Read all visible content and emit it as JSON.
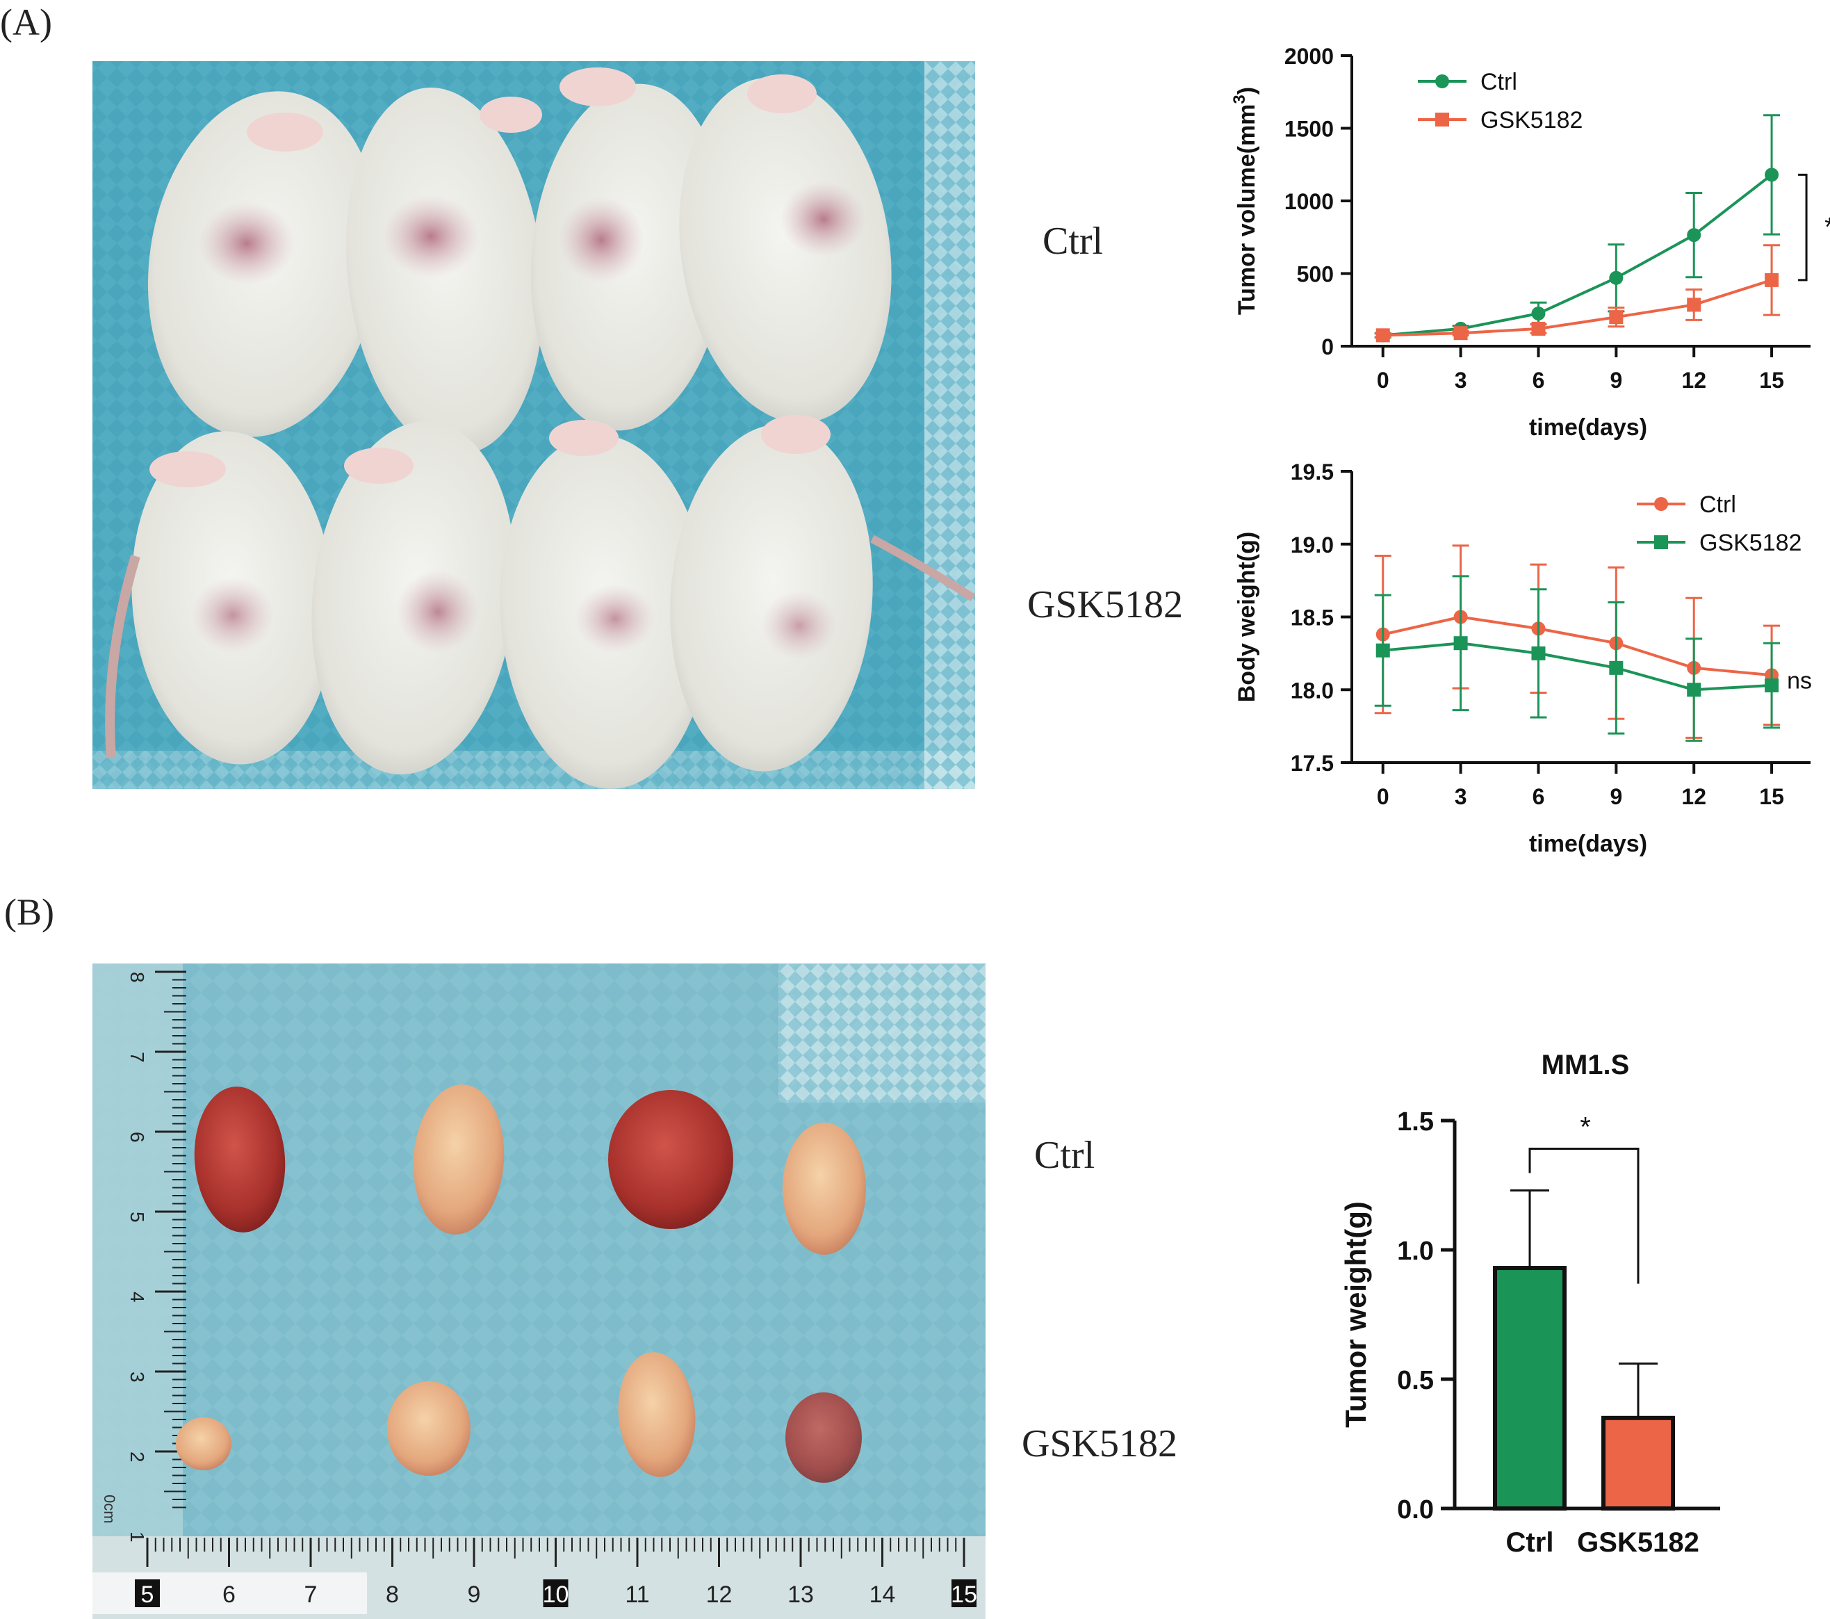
{
  "panel_labels": {
    "a": "(A)",
    "b": "(B)"
  },
  "photo_labels": {
    "mice_ctrl": "Ctrl",
    "mice_treated": "GSK5182",
    "tumors_ctrl": "Ctrl",
    "tumors_treated": "GSK5182"
  },
  "ruler": {
    "bottom_labels": [
      "5",
      "6",
      "7",
      "8",
      "9",
      "10",
      "11",
      "12",
      "13",
      "14",
      "15"
    ],
    "left_labels": [
      "8",
      "7",
      "6",
      "5",
      "4",
      "3",
      "2",
      "1"
    ],
    "unit": "0cm"
  },
  "colors": {
    "green": "#1b9458",
    "orange": "#ec6547",
    "cloth": "#4aa6bd",
    "cloth_light": "#86c2cf"
  },
  "chart_data": [
    {
      "id": "tumor-volume",
      "type": "line",
      "title": "",
      "xlabel": "time(days)",
      "ylabel": "Tumor volume(mm",
      "ylabel_sup": "3",
      "ylabel_close": ")",
      "x": [
        0,
        3,
        6,
        9,
        12,
        15
      ],
      "xlim": [
        -1.2,
        16.5
      ],
      "ylim": [
        0,
        2000
      ],
      "yticks": [
        0,
        500,
        1000,
        1500,
        2000
      ],
      "grid": false,
      "legend": "top-left",
      "series": [
        {
          "name": "Ctrl",
          "color": "#1b9458",
          "marker": "circle",
          "values": [
            75,
            120,
            225,
            470,
            765,
            1180
          ],
          "errors": [
            15,
            20,
            75,
            230,
            290,
            410
          ]
        },
        {
          "name": "GSK5182",
          "color": "#ec6547",
          "marker": "square",
          "values": [
            75,
            90,
            120,
            200,
            285,
            455
          ],
          "errors": [
            12,
            15,
            30,
            65,
            105,
            240
          ]
        }
      ],
      "annotation": "*"
    },
    {
      "id": "body-weight",
      "type": "line",
      "title": "",
      "xlabel": "time(days)",
      "ylabel": "Body weight(g)",
      "x": [
        0,
        3,
        6,
        9,
        12,
        15
      ],
      "xlim": [
        -1.2,
        16.5
      ],
      "ylim": [
        17.5,
        19.5
      ],
      "yticks": [
        17.5,
        18.0,
        18.5,
        19.0,
        19.5
      ],
      "grid": false,
      "legend": "top-right",
      "series": [
        {
          "name": "Ctrl",
          "color": "#ec6547",
          "marker": "circle",
          "values": [
            18.38,
            18.5,
            18.42,
            18.32,
            18.15,
            18.1
          ],
          "errors": [
            0.54,
            0.49,
            0.44,
            0.52,
            0.48,
            0.34
          ]
        },
        {
          "name": "GSK5182",
          "color": "#1b9458",
          "marker": "square",
          "values": [
            18.27,
            18.32,
            18.25,
            18.15,
            18.0,
            18.03
          ],
          "errors": [
            0.38,
            0.46,
            0.44,
            0.45,
            0.35,
            0.29
          ]
        }
      ],
      "annotation": "ns"
    },
    {
      "id": "tumor-weight",
      "type": "bar",
      "title": "MM1.S",
      "xlabel": "",
      "ylabel": "Tumor weight(g)",
      "categories": [
        "Ctrl",
        "GSK5182"
      ],
      "values": [
        0.93,
        0.35
      ],
      "errors": [
        0.3,
        0.21
      ],
      "colors": [
        "#1b9458",
        "#ec6547"
      ],
      "ylim": [
        0,
        1.5
      ],
      "yticks": [
        0.0,
        0.5,
        1.0,
        1.5
      ],
      "grid": false,
      "annotation": "*"
    }
  ]
}
